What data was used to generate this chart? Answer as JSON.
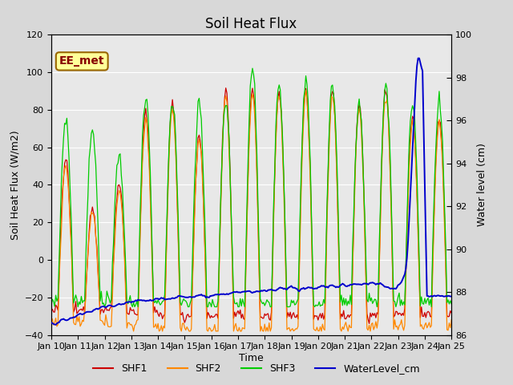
{
  "title": "Soil Heat Flux",
  "xlabel": "Time",
  "ylabel_left": "Soil Heat Flux (W/m2)",
  "ylabel_right": "Water level (cm)",
  "ylim_left": [
    -40,
    120
  ],
  "ylim_right": [
    86,
    100
  ],
  "xtick_labels": [
    "Jan 10",
    "Jan 11",
    "Jan 12",
    "Jan 13",
    "Jan 14",
    "Jan 15",
    "Jan 16",
    "Jan 17",
    "Jan 18",
    "Jan 19",
    "Jan 20",
    "Jan 21",
    "Jan 22",
    "Jan 23",
    "Jan 24",
    "Jan 25"
  ],
  "colors": {
    "SHF1": "#cc0000",
    "SHF2": "#ff8800",
    "SHF3": "#00cc00",
    "WaterLevel_cm": "#0000cc"
  },
  "background_color": "#d8d8d8",
  "plot_bg_color": "#e8e8e8",
  "grid_color": "#ffffff",
  "annotation_text": "EE_met",
  "annotation_bg": "#ffff99",
  "annotation_border": "#996600",
  "annotation_text_color": "#880000",
  "title_fontsize": 12,
  "axis_fontsize": 9,
  "tick_fontsize": 8,
  "legend_fontsize": 9
}
